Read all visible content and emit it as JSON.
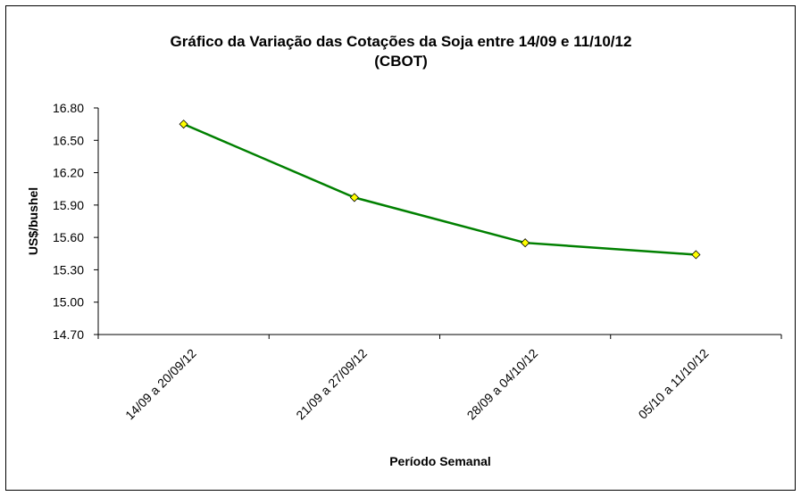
{
  "chart_data": {
    "type": "line",
    "title": "Gráfico da Variação das Cotações da Soja entre 14/09 e 11/10/12",
    "subtitle": "(CBOT)",
    "xlabel": "Período Semanal",
    "ylabel": "US$/bushel",
    "categories": [
      "14/09 a 20/09/12",
      "21/09 a 27/09/12",
      "28/09 a 04/10/12",
      "05/10 a 11/10/12"
    ],
    "series": [
      {
        "values": [
          16.65,
          15.97,
          15.55,
          15.44
        ]
      }
    ],
    "ylim": [
      14.7,
      16.8
    ],
    "yticks": [
      "16.80",
      "16.50",
      "16.20",
      "15.90",
      "15.60",
      "15.30",
      "15.00",
      "14.70"
    ],
    "grid": false,
    "legend": "none",
    "colors": {
      "line": "#008000",
      "marker_fill": "#ffff00",
      "marker_stroke": "#000000"
    }
  }
}
